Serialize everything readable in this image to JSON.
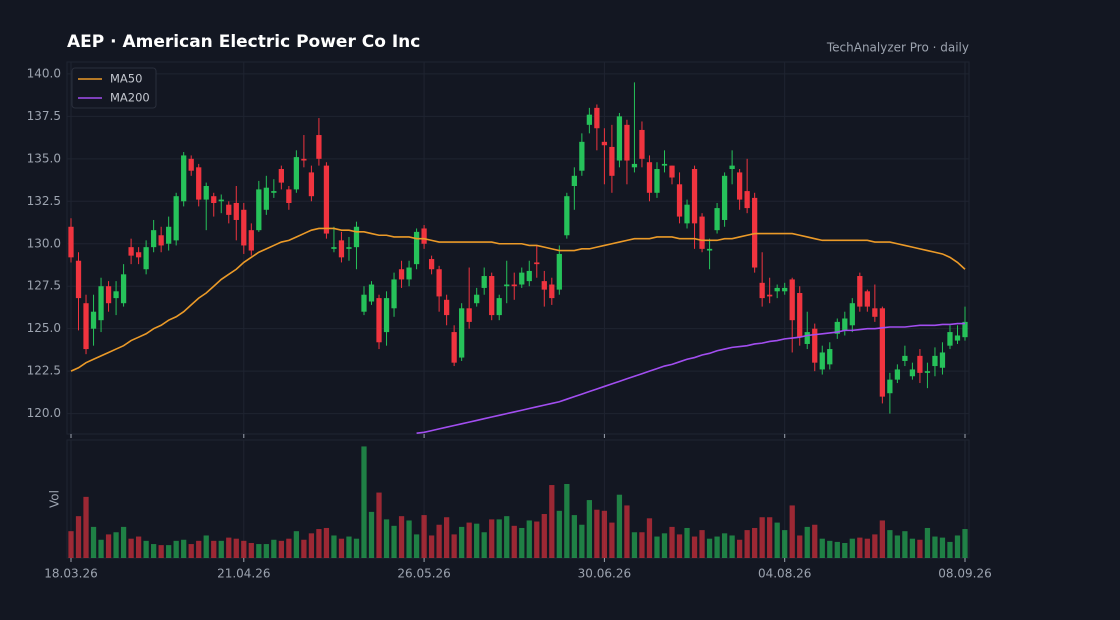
{
  "chart_data": {
    "type": "candlestick",
    "title": "AEP  ·  American Electric Power Co Inc",
    "subtitle": "TechAnalyzer Pro · daily",
    "legend": "upper left",
    "grid": true,
    "up_color": "#26c25a",
    "down_color": "#f0343f",
    "ylim": [
      118.8,
      140.7
    ],
    "yticks": [
      {
        "value": 120,
        "label": "120.0"
      },
      122.5,
      {
        "value": 125,
        "label": "125.0"
      },
      127.5,
      {
        "value": 130,
        "label": "130.0"
      },
      132.5,
      {
        "value": 135,
        "label": "135.0"
      },
      137.5,
      {
        "value": 140,
        "label": "140.0"
      }
    ],
    "xlim": [
      0,
      119
    ],
    "xticks": [
      {
        "value": 0,
        "label": "18.03.26"
      },
      {
        "value": 23,
        "label": "21.04.26"
      },
      {
        "value": 47,
        "label": "26.05.26"
      },
      {
        "value": 71,
        "label": "30.06.26"
      },
      {
        "value": 95,
        "label": "04.08.26"
      },
      {
        "value": 119,
        "label": "08.09.26"
      }
    ],
    "open": [
      131.0,
      129.0,
      126.5,
      125.0,
      125.5,
      127.5,
      126.8,
      126.5,
      129.8,
      129.5,
      128.5,
      129.8,
      130.5,
      130.0,
      130.2,
      132.5,
      135.0,
      134.5,
      132.6,
      132.8,
      132.5,
      132.3,
      132.4,
      132.0,
      130.8,
      130.8,
      132.0,
      133.0,
      134.4,
      133.2,
      133.2,
      135.0,
      134.2,
      136.4,
      134.6,
      129.7,
      130.2,
      129.7,
      129.8,
      126.0,
      126.6,
      126.8,
      124.8,
      126.2,
      128.5,
      127.9,
      128.8,
      130.9,
      129.1,
      128.5,
      126.7,
      124.8,
      123.3,
      126.2,
      126.5,
      127.4,
      128.1,
      125.8,
      127.5,
      127.6,
      127.6,
      127.8,
      128.9,
      127.8,
      127.6,
      127.3,
      130.5,
      133.4,
      134.3,
      137.0,
      138.0,
      136.0,
      135.7,
      134.9,
      137.0,
      134.5,
      136.7,
      134.8,
      133.0,
      134.6,
      134.6,
      133.5,
      131.2,
      134.4,
      131.6,
      129.6,
      130.8,
      131.4,
      134.4,
      134.2,
      133.1,
      132.7,
      127.7,
      127.0,
      127.2,
      127.2,
      127.9,
      127.1,
      124.1,
      125.0,
      122.6,
      122.9,
      124.7,
      124.9,
      125.2,
      128.1,
      127.2,
      126.2,
      126.2,
      121.2,
      122.0,
      123.1,
      122.2,
      123.4,
      122.4,
      122.8,
      122.7,
      124.0,
      124.3,
      124.5
    ],
    "high": [
      131.5,
      129.5,
      127.0,
      127.0,
      128.0,
      127.8,
      127.8,
      128.8,
      130.3,
      129.8,
      130.2,
      131.4,
      131.0,
      131.6,
      133.0,
      135.4,
      135.2,
      134.7,
      133.6,
      133.0,
      132.9,
      132.5,
      133.4,
      132.4,
      131.2,
      133.7,
      134.0,
      133.8,
      134.6,
      133.4,
      135.5,
      136.4,
      134.6,
      137.4,
      134.8,
      131.0,
      130.7,
      130.4,
      131.3,
      127.5,
      127.8,
      127.0,
      127.2,
      128.3,
      129.0,
      129.0,
      130.9,
      131.1,
      129.3,
      128.7,
      127.0,
      125.2,
      126.5,
      128.6,
      127.4,
      128.6,
      128.3,
      127.0,
      129.0,
      128.3,
      128.6,
      129.0,
      129.9,
      128.4,
      128.0,
      129.9,
      133.0,
      134.5,
      136.5,
      138.0,
      138.2,
      136.8,
      137.0,
      137.7,
      137.3,
      139.5,
      137.2,
      135.2,
      134.8,
      135.5,
      134.6,
      134.2,
      132.6,
      134.6,
      131.8,
      130.3,
      132.4,
      134.2,
      135.5,
      134.4,
      135.0,
      133.0,
      129.5,
      128.0,
      127.6,
      127.7,
      128.0,
      127.5,
      126.0,
      125.3,
      124.0,
      124.2,
      125.6,
      126.0,
      126.8,
      128.3,
      127.3,
      127.6,
      126.3,
      122.4,
      122.9,
      124.0,
      123.0,
      123.8,
      123.0,
      123.9,
      124.2,
      125.2,
      125.2,
      126.3
    ],
    "low": [
      128.9,
      124.9,
      123.5,
      124.0,
      124.8,
      126.0,
      125.8,
      126.3,
      128.8,
      128.8,
      128.2,
      129.5,
      129.5,
      129.6,
      129.9,
      132.2,
      134.0,
      132.2,
      130.8,
      131.6,
      131.8,
      131.2,
      130.2,
      129.4,
      129.3,
      130.7,
      131.7,
      132.7,
      133.2,
      132.0,
      133.0,
      134.5,
      132.5,
      134.6,
      130.3,
      129.5,
      128.9,
      129.0,
      128.5,
      125.8,
      126.4,
      123.8,
      124.0,
      125.7,
      127.4,
      127.5,
      128.5,
      129.7,
      128.2,
      126.0,
      125.2,
      122.8,
      123.1,
      125.0,
      126.3,
      127.0,
      125.5,
      125.5,
      126.5,
      126.7,
      127.4,
      127.5,
      128.0,
      126.3,
      126.4,
      127.0,
      130.3,
      132.0,
      134.0,
      136.5,
      135.5,
      133.5,
      133.0,
      134.5,
      133.5,
      134.2,
      134.5,
      132.5,
      132.7,
      134.2,
      133.5,
      131.2,
      130.9,
      129.7,
      129.5,
      128.5,
      130.6,
      131.0,
      133.5,
      132.0,
      131.8,
      128.3,
      126.3,
      126.5,
      126.8,
      127.0,
      123.6,
      124.0,
      123.8,
      122.5,
      122.3,
      122.6,
      124.4,
      124.6,
      124.8,
      126.0,
      126.0,
      125.4,
      120.6,
      120.0,
      121.8,
      122.8,
      122.0,
      121.8,
      121.5,
      122.2,
      122.3,
      123.8,
      124.1,
      124.3
    ],
    "close": [
      129.2,
      126.8,
      123.8,
      126.0,
      127.5,
      126.5,
      127.2,
      128.2,
      129.3,
      129.2,
      129.8,
      130.8,
      129.9,
      131.0,
      132.8,
      135.2,
      134.3,
      132.6,
      133.4,
      132.4,
      132.6,
      131.7,
      131.4,
      129.9,
      129.6,
      133.2,
      133.3,
      133.1,
      133.6,
      132.4,
      135.1,
      134.9,
      132.8,
      135.0,
      130.6,
      129.8,
      129.2,
      129.8,
      131.0,
      127.0,
      127.6,
      124.2,
      126.8,
      127.9,
      127.9,
      128.6,
      130.7,
      130.0,
      128.5,
      126.9,
      125.8,
      123.0,
      126.2,
      125.4,
      127.0,
      128.1,
      125.8,
      126.8,
      127.6,
      127.5,
      128.3,
      128.4,
      128.8,
      127.3,
      126.8,
      129.4,
      132.8,
      134.0,
      136.0,
      137.6,
      136.8,
      135.8,
      134.0,
      137.5,
      134.9,
      134.7,
      135.0,
      133.0,
      134.4,
      134.7,
      133.9,
      131.6,
      132.3,
      131.2,
      129.7,
      129.7,
      132.1,
      134.0,
      134.6,
      132.6,
      132.1,
      128.6,
      126.8,
      126.9,
      127.4,
      127.4,
      125.5,
      124.5,
      124.8,
      123.0,
      123.6,
      123.8,
      125.4,
      125.6,
      126.5,
      126.3,
      126.3,
      125.7,
      121.0,
      122.0,
      122.6,
      123.4,
      122.6,
      122.4,
      122.5,
      123.4,
      123.6,
      124.8,
      124.6,
      125.4
    ],
    "series": [
      {
        "name": "MA50",
        "color": "#eb9a28",
        "values": [
          122.5,
          122.7,
          123.0,
          123.2,
          123.4,
          123.6,
          123.8,
          124.0,
          124.3,
          124.5,
          124.7,
          125.0,
          125.2,
          125.5,
          125.7,
          126.0,
          126.4,
          126.8,
          127.1,
          127.5,
          127.9,
          128.2,
          128.5,
          128.9,
          129.2,
          129.5,
          129.7,
          129.9,
          130.1,
          130.2,
          130.4,
          130.6,
          130.8,
          130.9,
          130.9,
          130.9,
          130.8,
          130.8,
          130.7,
          130.7,
          130.6,
          130.5,
          130.5,
          130.4,
          130.4,
          130.4,
          130.3,
          130.3,
          130.2,
          130.1,
          130.1,
          130.1,
          130.1,
          130.1,
          130.1,
          130.1,
          130.1,
          130.0,
          130.0,
          130.0,
          130.0,
          129.9,
          129.9,
          129.8,
          129.7,
          129.6,
          129.6,
          129.6,
          129.7,
          129.7,
          129.8,
          129.9,
          130.0,
          130.1,
          130.2,
          130.3,
          130.3,
          130.3,
          130.4,
          130.4,
          130.4,
          130.3,
          130.3,
          130.3,
          130.2,
          130.2,
          130.2,
          130.3,
          130.3,
          130.4,
          130.5,
          130.6,
          130.6,
          130.6,
          130.6,
          130.6,
          130.6,
          130.5,
          130.4,
          130.3,
          130.2,
          130.2,
          130.2,
          130.2,
          130.2,
          130.2,
          130.2,
          130.1,
          130.1,
          130.1,
          130.0,
          129.9,
          129.8,
          129.7,
          129.6,
          129.5,
          129.4,
          129.2,
          128.9,
          128.5
        ]
      },
      {
        "name": "MA200",
        "color": "#a24ef0",
        "values": [
          null,
          null,
          null,
          null,
          null,
          null,
          null,
          null,
          null,
          null,
          null,
          null,
          null,
          null,
          null,
          null,
          null,
          null,
          null,
          null,
          null,
          null,
          null,
          null,
          null,
          null,
          null,
          null,
          null,
          null,
          null,
          null,
          null,
          null,
          null,
          null,
          null,
          null,
          null,
          null,
          null,
          null,
          null,
          null,
          null,
          null,
          118.85,
          118.9,
          119.0,
          119.1,
          119.2,
          119.3,
          119.4,
          119.5,
          119.6,
          119.7,
          119.8,
          119.9,
          120.0,
          120.1,
          120.2,
          120.3,
          120.4,
          120.5,
          120.6,
          120.7,
          120.85,
          121.0,
          121.15,
          121.3,
          121.45,
          121.6,
          121.75,
          121.9,
          122.05,
          122.2,
          122.35,
          122.5,
          122.65,
          122.8,
          122.9,
          123.05,
          123.2,
          123.3,
          123.45,
          123.55,
          123.7,
          123.8,
          123.9,
          123.95,
          124.0,
          124.1,
          124.15,
          124.25,
          124.3,
          124.4,
          124.45,
          124.5,
          124.6,
          124.65,
          124.7,
          124.75,
          124.8,
          124.9,
          124.9,
          124.95,
          125.0,
          125.0,
          125.05,
          125.1,
          125.1,
          125.1,
          125.15,
          125.2,
          125.2,
          125.2,
          125.25,
          125.25,
          125.3,
          125.3
        ]
      }
    ],
    "volume": {
      "label": "Vol",
      "ylim": [
        0,
        110
      ],
      "values": [
        25,
        39,
        57,
        29,
        17,
        22,
        24,
        29,
        18,
        20,
        16,
        13,
        12,
        12,
        16,
        17,
        13,
        16,
        21,
        16,
        16,
        19,
        18,
        16,
        14,
        13,
        13,
        17,
        16,
        18,
        25,
        17,
        23,
        27,
        28,
        21,
        18,
        20,
        18,
        104,
        43,
        61,
        36,
        30,
        39,
        35,
        22,
        40,
        21,
        31,
        38,
        22,
        29,
        33,
        32,
        24,
        36,
        36,
        39,
        30,
        28,
        35,
        34,
        41,
        68,
        44,
        69,
        40,
        31,
        54,
        45,
        44,
        33,
        59,
        49,
        24,
        24,
        37,
        20,
        23,
        29,
        22,
        28,
        20,
        26,
        18,
        20,
        23,
        21,
        17,
        26,
        28,
        38,
        38,
        33,
        26,
        49,
        21,
        29,
        31,
        18,
        16,
        15,
        14,
        18,
        19,
        18,
        22,
        35,
        26,
        21,
        25,
        18,
        17,
        28,
        20,
        19,
        15,
        21,
        27
      ]
    }
  }
}
